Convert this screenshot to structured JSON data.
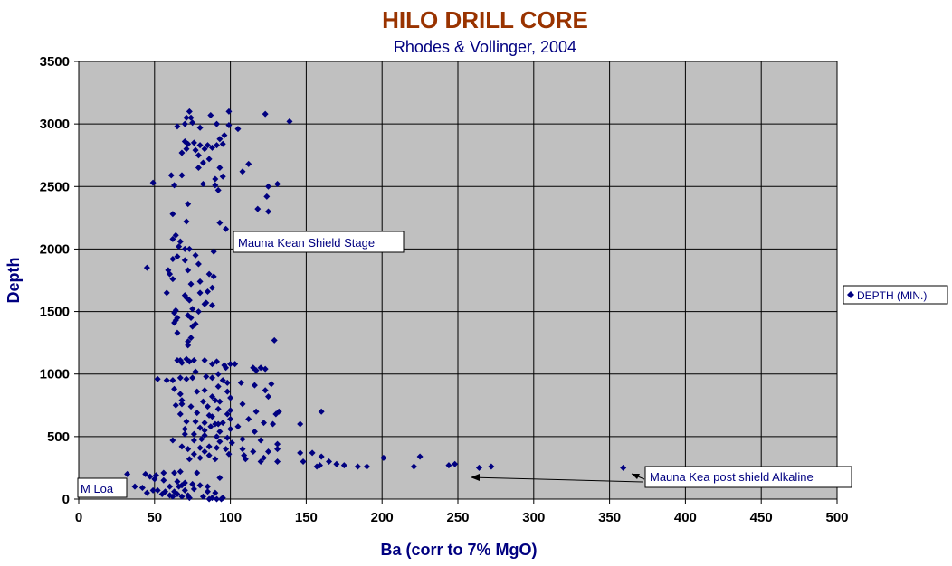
{
  "colors": {
    "title": "#993300",
    "navy": "#000080",
    "plot_bg": "#c0c0c0",
    "grid": "#000000"
  },
  "chart_data": {
    "type": "scatter",
    "title": "HILO DRILL CORE",
    "subtitle": "Rhodes & Vollinger, 2004",
    "xlabel": "Ba (corr to 7% MgO)",
    "ylabel": "Depth",
    "xlim": [
      0,
      500
    ],
    "ylim": [
      0,
      3500
    ],
    "x_ticks": [
      "0",
      "50",
      "100",
      "150",
      "200",
      "250",
      "300",
      "350",
      "400",
      "450",
      "500"
    ],
    "y_ticks": [
      "0",
      "500",
      "1000",
      "1500",
      "2000",
      "2500",
      "3000",
      "3500"
    ],
    "grid": true,
    "legend": {
      "position": "right",
      "entries": [
        "DEPTH (MIN.)"
      ]
    },
    "annotations": [
      {
        "text": "Mauna Kean Shield Stage"
      },
      {
        "text": "M Loa"
      },
      {
        "text": "Mauna Kea post shield Alkaline"
      }
    ],
    "series": [
      {
        "name": "DEPTH (MIN.)",
        "points": [
          [
            73,
            3100
          ],
          [
            99,
            3100
          ],
          [
            71,
            3050
          ],
          [
            74,
            3050
          ],
          [
            87,
            3070
          ],
          [
            123,
            3080
          ],
          [
            139,
            3020
          ],
          [
            65,
            2980
          ],
          [
            70,
            3000
          ],
          [
            75,
            3010
          ],
          [
            91,
            3000
          ],
          [
            99,
            2990
          ],
          [
            105,
            2960
          ],
          [
            80,
            2970
          ],
          [
            96,
            2910
          ],
          [
            93,
            2880
          ],
          [
            70,
            2860
          ],
          [
            72,
            2840
          ],
          [
            76,
            2850
          ],
          [
            80,
            2830
          ],
          [
            85,
            2830
          ],
          [
            88,
            2810
          ],
          [
            91,
            2830
          ],
          [
            95,
            2840
          ],
          [
            71,
            2800
          ],
          [
            83,
            2800
          ],
          [
            77,
            2790
          ],
          [
            68,
            2770
          ],
          [
            79,
            2750
          ],
          [
            86,
            2720
          ],
          [
            82,
            2690
          ],
          [
            112,
            2680
          ],
          [
            93,
            2650
          ],
          [
            79,
            2650
          ],
          [
            108,
            2620
          ],
          [
            61,
            2590
          ],
          [
            68,
            2590
          ],
          [
            95,
            2580
          ],
          [
            90,
            2560
          ],
          [
            49,
            2530
          ],
          [
            82,
            2520
          ],
          [
            63,
            2510
          ],
          [
            90,
            2510
          ],
          [
            125,
            2500
          ],
          [
            131,
            2520
          ],
          [
            92,
            2470
          ],
          [
            124,
            2420
          ],
          [
            118,
            2320
          ],
          [
            125,
            2300
          ],
          [
            72,
            2360
          ],
          [
            62,
            2280
          ],
          [
            93,
            2210
          ],
          [
            71,
            2220
          ],
          [
            97,
            2160
          ],
          [
            64,
            2110
          ],
          [
            62,
            2080
          ],
          [
            67,
            2060
          ],
          [
            66,
            2020
          ],
          [
            70,
            2000
          ],
          [
            73,
            2000
          ],
          [
            89,
            1980
          ],
          [
            77,
            1950
          ],
          [
            65,
            1940
          ],
          [
            62,
            1920
          ],
          [
            70,
            1910
          ],
          [
            79,
            1880
          ],
          [
            45,
            1850
          ],
          [
            59,
            1830
          ],
          [
            72,
            1830
          ],
          [
            60,
            1800
          ],
          [
            86,
            1800
          ],
          [
            89,
            1780
          ],
          [
            62,
            1760
          ],
          [
            80,
            1740
          ],
          [
            74,
            1720
          ],
          [
            58,
            1650
          ],
          [
            88,
            1690
          ],
          [
            85,
            1660
          ],
          [
            80,
            1650
          ],
          [
            70,
            1630
          ],
          [
            71,
            1610
          ],
          [
            73,
            1590
          ],
          [
            84,
            1570
          ],
          [
            88,
            1550
          ],
          [
            83,
            1560
          ],
          [
            64,
            1510
          ],
          [
            63,
            1490
          ],
          [
            75,
            1520
          ],
          [
            79,
            1500
          ],
          [
            72,
            1470
          ],
          [
            65,
            1450
          ],
          [
            74,
            1450
          ],
          [
            64,
            1430
          ],
          [
            63,
            1410
          ],
          [
            77,
            1400
          ],
          [
            75,
            1380
          ],
          [
            65,
            1330
          ],
          [
            74,
            1290
          ],
          [
            72,
            1260
          ],
          [
            72,
            1230
          ],
          [
            129,
            1270
          ],
          [
            65,
            1110
          ],
          [
            68,
            1090
          ],
          [
            67,
            1110
          ],
          [
            71,
            1120
          ],
          [
            73,
            1100
          ],
          [
            76,
            1110
          ],
          [
            83,
            1110
          ],
          [
            88,
            1080
          ],
          [
            91,
            1100
          ],
          [
            96,
            1070
          ],
          [
            100,
            1080
          ],
          [
            103,
            1080
          ],
          [
            97,
            1050
          ],
          [
            115,
            1050
          ],
          [
            117,
            1030
          ],
          [
            120,
            1050
          ],
          [
            123,
            1040
          ],
          [
            77,
            1020
          ],
          [
            92,
            1000
          ],
          [
            52,
            960
          ],
          [
            58,
            950
          ],
          [
            62,
            950
          ],
          [
            67,
            970
          ],
          [
            71,
            960
          ],
          [
            75,
            970
          ],
          [
            84,
            980
          ],
          [
            88,
            970
          ],
          [
            95,
            950
          ],
          [
            98,
            930
          ],
          [
            107,
            930
          ],
          [
            116,
            910
          ],
          [
            127,
            920
          ],
          [
            92,
            900
          ],
          [
            63,
            880
          ],
          [
            78,
            860
          ],
          [
            83,
            870
          ],
          [
            98,
            860
          ],
          [
            123,
            870
          ],
          [
            67,
            840
          ],
          [
            88,
            820
          ],
          [
            100,
            810
          ],
          [
            90,
            790
          ],
          [
            125,
            820
          ],
          [
            68,
            790
          ],
          [
            82,
            780
          ],
          [
            93,
            780
          ],
          [
            108,
            760
          ],
          [
            64,
            750
          ],
          [
            68,
            760
          ],
          [
            74,
            740
          ],
          [
            85,
            740
          ],
          [
            92,
            720
          ],
          [
            100,
            710
          ],
          [
            117,
            700
          ],
          [
            132,
            700
          ],
          [
            160,
            700
          ],
          [
            130,
            680
          ],
          [
            67,
            680
          ],
          [
            78,
            690
          ],
          [
            86,
            670
          ],
          [
            98,
            680
          ],
          [
            88,
            660
          ],
          [
            100,
            640
          ],
          [
            112,
            640
          ],
          [
            122,
            610
          ],
          [
            71,
            620
          ],
          [
            77,
            620
          ],
          [
            83,
            610
          ],
          [
            90,
            600
          ],
          [
            95,
            610
          ],
          [
            92,
            600
          ],
          [
            105,
            580
          ],
          [
            128,
            600
          ],
          [
            146,
            600
          ],
          [
            87,
            580
          ],
          [
            80,
            570
          ],
          [
            70,
            560
          ],
          [
            100,
            560
          ],
          [
            83,
            550
          ],
          [
            93,
            540
          ],
          [
            116,
            540
          ],
          [
            70,
            520
          ],
          [
            76,
            520
          ],
          [
            83,
            510
          ],
          [
            91,
            500
          ],
          [
            98,
            490
          ],
          [
            108,
            480
          ],
          [
            81,
            480
          ],
          [
            62,
            470
          ],
          [
            76,
            470
          ],
          [
            120,
            470
          ],
          [
            93,
            460
          ],
          [
            101,
            450
          ],
          [
            131,
            440
          ],
          [
            68,
            420
          ],
          [
            72,
            400
          ],
          [
            80,
            410
          ],
          [
            86,
            420
          ],
          [
            91,
            410
          ],
          [
            97,
            400
          ],
          [
            108,
            400
          ],
          [
            115,
            380
          ],
          [
            125,
            380
          ],
          [
            131,
            400
          ],
          [
            83,
            380
          ],
          [
            76,
            360
          ],
          [
            86,
            350
          ],
          [
            99,
            360
          ],
          [
            109,
            350
          ],
          [
            122,
            330
          ],
          [
            146,
            370
          ],
          [
            80,
            330
          ],
          [
            73,
            320
          ],
          [
            90,
            320
          ],
          [
            110,
            320
          ],
          [
            120,
            300
          ],
          [
            131,
            300
          ],
          [
            148,
            300
          ],
          [
            154,
            370
          ],
          [
            160,
            340
          ],
          [
            165,
            300
          ],
          [
            159,
            270
          ],
          [
            170,
            280
          ],
          [
            175,
            270
          ],
          [
            184,
            260
          ],
          [
            190,
            260
          ],
          [
            157,
            260
          ],
          [
            201,
            330
          ],
          [
            221,
            260
          ],
          [
            225,
            340
          ],
          [
            244,
            270
          ],
          [
            248,
            280
          ],
          [
            264,
            250
          ],
          [
            272,
            260
          ],
          [
            359,
            250
          ],
          [
            32,
            200
          ],
          [
            44,
            200
          ],
          [
            47,
            180
          ],
          [
            51,
            190
          ],
          [
            56,
            210
          ],
          [
            63,
            210
          ],
          [
            67,
            220
          ],
          [
            78,
            210
          ],
          [
            93,
            170
          ],
          [
            50,
            160
          ],
          [
            56,
            150
          ],
          [
            65,
            140
          ],
          [
            70,
            130
          ],
          [
            75,
            120
          ],
          [
            80,
            110
          ],
          [
            68,
            110
          ],
          [
            60,
            100
          ],
          [
            66,
            100
          ],
          [
            85,
            100
          ],
          [
            37,
            100
          ],
          [
            42,
            90
          ],
          [
            52,
            70
          ],
          [
            57,
            60
          ],
          [
            63,
            60
          ],
          [
            70,
            70
          ],
          [
            76,
            80
          ],
          [
            85,
            60
          ],
          [
            90,
            50
          ],
          [
            55,
            40
          ],
          [
            60,
            30
          ],
          [
            65,
            40
          ],
          [
            72,
            30
          ],
          [
            82,
            20
          ],
          [
            88,
            10
          ],
          [
            95,
            10
          ],
          [
            45,
            50
          ],
          [
            49,
            70
          ],
          [
            73,
            10
          ],
          [
            62,
            20
          ],
          [
            68,
            20
          ],
          [
            91,
            0
          ],
          [
            86,
            0
          ],
          [
            94,
            0
          ]
        ]
      }
    ]
  }
}
